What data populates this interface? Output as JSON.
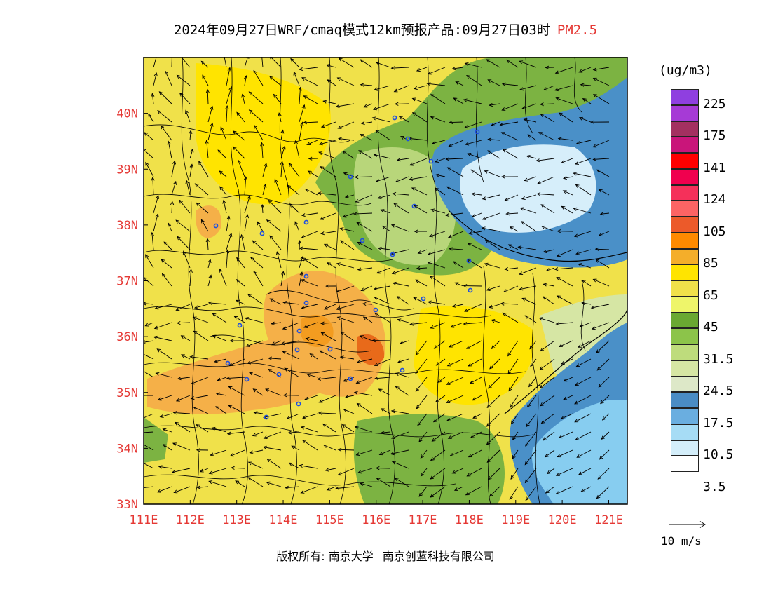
{
  "title": {
    "main": "2024年09月27日WRF/cmaq模式12km预报产品:09月27日03时",
    "variable": "PM2.5"
  },
  "map": {
    "lon_range": [
      111,
      121.4
    ],
    "lat_range": [
      33,
      41
    ],
    "x_ticks": [
      "111E",
      "112E",
      "113E",
      "114E",
      "115E",
      "116E",
      "117E",
      "118E",
      "119E",
      "120E",
      "121E"
    ],
    "y_ticks": [
      "33N",
      "34N",
      "35N",
      "36N",
      "37N",
      "38N",
      "39N",
      "40N"
    ],
    "colors": {
      "sea": "#87cdf0",
      "sea_light": "#d6eefa",
      "deep_blue": "#4a90c8",
      "base_yellow": "#f0e14a",
      "bright_yellow": "#ffe400",
      "light_orange": "#f5b048",
      "orange": "#f39c20",
      "dark_orange": "#e86a1a",
      "green": "#7cb342",
      "light_green": "#b8d67a",
      "pale_green": "#d6e6a4"
    }
  },
  "legend": {
    "unit": "(ug/m3)",
    "swatches": [
      "#8f3fe0",
      "#a63ad6",
      "#a33060",
      "#c9157a",
      "#ff0000",
      "#f0004e",
      "#f5305a",
      "#fc6464",
      "#ec5a2a",
      "#ff8a00",
      "#f4ae2a",
      "#ffe400",
      "#f0e14a",
      "#eef56a",
      "#6aa832",
      "#8cc44a",
      "#bedc7c",
      "#d6e6a4",
      "#dde8c8",
      "#4a8cc4",
      "#6aaee0",
      "#a6dcf5",
      "#d4eefa",
      "#ffffff"
    ],
    "labels": [
      "225",
      "175",
      "141",
      "124",
      "105",
      "85",
      "65",
      "45",
      "31.5",
      "24.5",
      "17.5",
      "10.5",
      "3.5"
    ]
  },
  "wind_scale": {
    "label": "10 m/s"
  },
  "footer": {
    "left": "版权所有: 南京大学",
    "right": "南京创蓝科技有限公司"
  }
}
